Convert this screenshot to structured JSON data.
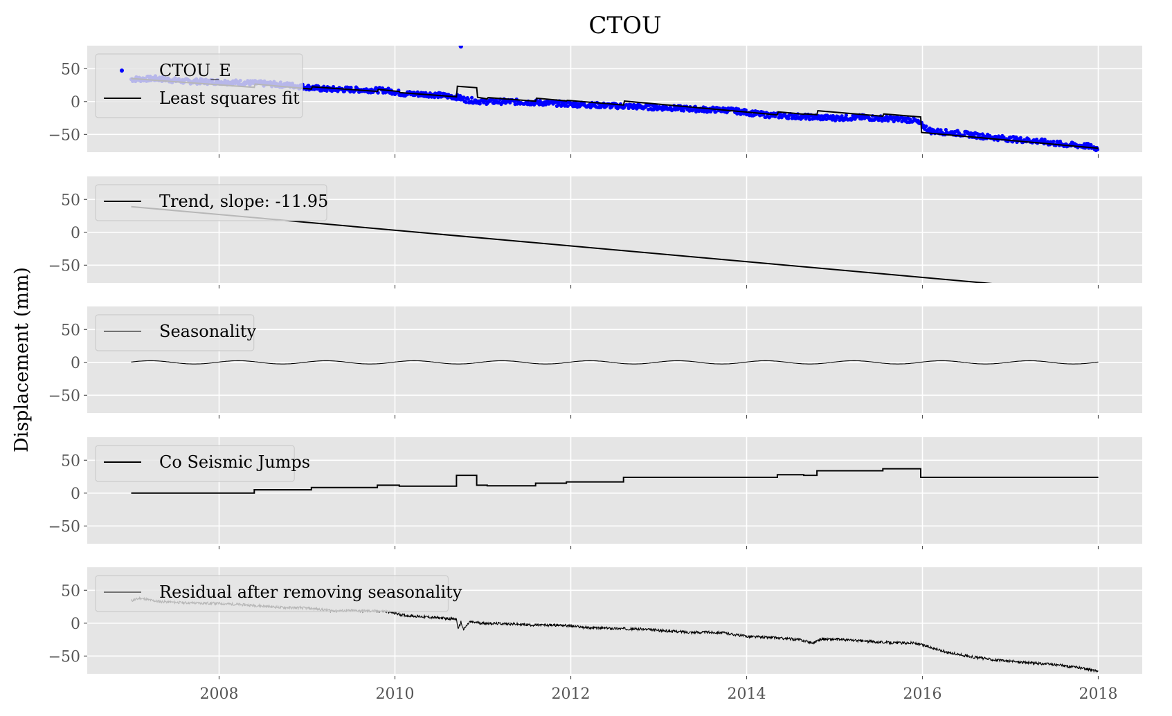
{
  "chart_data": {
    "type": "line",
    "title": "CTOU",
    "ylabel": "Displacement (mm)",
    "xlabel": "",
    "xlim": [
      2006.5,
      2018.5
    ],
    "ylim": [
      -77,
      85
    ],
    "x_ticks": [
      2008,
      2010,
      2012,
      2014,
      2016,
      2018
    ],
    "x_tick_labels": [
      "2008",
      "2010",
      "2012",
      "2014",
      "2016",
      "2018"
    ],
    "y_ticks": [
      50,
      0,
      -50
    ],
    "y_tick_labels": [
      "50",
      "0",
      "−50"
    ],
    "grid": true,
    "background_color": "#e5e5e5",
    "legend_position": "upper left",
    "panels": [
      {
        "legend": [
          {
            "label": "CTOU_E",
            "style": "point",
            "color": "#0000ff"
          },
          {
            "label": "Least squares fit",
            "style": "line",
            "color": "#000000"
          }
        ],
        "series": [
          {
            "name": "CTOU_E",
            "style": "scatter",
            "color": "#0000ff",
            "x": [
              2007.0,
              2007.3,
              2007.6,
              2008.0,
              2008.4,
              2008.8,
              2009.2,
              2009.6,
              2009.9,
              2010.1,
              2010.4,
              2010.7,
              2010.8,
              2011.0,
              2011.3,
              2011.7,
              2012.0,
              2012.4,
              2012.8,
              2013.2,
              2013.5,
              2013.8,
              2014.2,
              2014.5,
              2014.8,
              2015.0,
              2015.3,
              2015.6,
              2015.9,
              2016.1,
              2016.4,
              2016.7,
              2017.0,
              2017.3,
              2017.6,
              2017.9,
              2018.0
            ],
            "y": [
              34,
              35,
              31,
              30,
              28,
              25,
              19,
              18,
              17,
              12,
              11,
              7,
              3,
              0,
              0,
              -2,
              -4,
              -6,
              -8,
              -10,
              -12,
              -13,
              -20,
              -22,
              -24,
              -25,
              -24,
              -26,
              -28,
              -45,
              -48,
              -53,
              -57,
              -60,
              -65,
              -68,
              -72
            ]
          },
          {
            "name": "Least squares fit",
            "style": "line",
            "color": "#000000",
            "x": [
              2007.0,
              2008.4,
              2008.41,
              2009.05,
              2009.06,
              2009.8,
              2009.81,
              2010.05,
              2010.06,
              2010.7,
              2010.71,
              2010.93,
              2010.94,
              2011.05,
              2011.06,
              2011.6,
              2011.61,
              2011.95,
              2011.96,
              2012.6,
              2012.61,
              2014.35,
              2014.36,
              2014.65,
              2014.66,
              2014.8,
              2014.81,
              2015.55,
              2015.56,
              2015.98,
              2015.99,
              2018.0
            ],
            "y": [
              35,
              21.6,
              26.6,
              18.9,
              22.4,
              15.5,
              18.5,
              15.3,
              13.6,
              7.3,
              23.3,
              21.0,
              6.5,
              4.0,
              6.0,
              0.5,
              5.0,
              0.9,
              1.9,
              -5.3,
              0.7,
              -20.2,
              -15.7,
              -19.2,
              -18.7,
              -20.0,
              -14.0,
              -22.3,
              -18.8,
              -23.5,
              -47.0,
              -71.0
            ]
          }
        ]
      },
      {
        "legend": [
          {
            "label": "Trend, slope: -11.95",
            "style": "line",
            "color": "#000000"
          }
        ],
        "series": [
          {
            "name": "Trend, slope: -11.95",
            "style": "line",
            "color": "#000000",
            "x": [
              2007.0,
              2018.0
            ],
            "y": [
              39,
              -92.5
            ]
          }
        ]
      },
      {
        "legend": [
          {
            "label": "Seasonality",
            "style": "line",
            "color": "#000000"
          }
        ],
        "series": [
          {
            "name": "Seasonality",
            "style": "line",
            "color": "#000000",
            "function": "sine",
            "x_range": [
              2007.0,
              2018.0
            ],
            "amplitude": 2.5,
            "period_years": 1.0,
            "phase": 0.2
          }
        ]
      },
      {
        "legend": [
          {
            "label": "Co Seismic Jumps",
            "style": "line",
            "color": "#000000"
          }
        ],
        "series": [
          {
            "name": "Co Seismic Jumps",
            "style": "step",
            "color": "#000000",
            "x": [
              2007.0,
              2008.4,
              2009.05,
              2009.8,
              2010.05,
              2010.7,
              2010.93,
              2011.05,
              2011.6,
              2011.95,
              2012.6,
              2014.35,
              2014.65,
              2014.8,
              2015.55,
              2015.98,
              2018.0
            ],
            "y": [
              0,
              5,
              8.5,
              12,
              10.5,
              27,
              12,
              11,
              15,
              17,
              24,
              28,
              27,
              34,
              37,
              24,
              24
            ]
          }
        ]
      },
      {
        "legend": [
          {
            "label": "Residual after removing seasonality",
            "style": "line",
            "color": "#000000"
          }
        ],
        "series": [
          {
            "name": "Residual after removing seasonality",
            "style": "line",
            "color": "#000000",
            "x": [
              2007.0,
              2007.1,
              2007.3,
              2007.6,
              2008.0,
              2008.4,
              2008.7,
              2009.0,
              2009.3,
              2009.6,
              2009.9,
              2010.1,
              2010.3,
              2010.5,
              2010.7,
              2010.72,
              2010.75,
              2010.78,
              2010.85,
              2011.0,
              2011.3,
              2011.6,
              2011.9,
              2012.2,
              2012.5,
              2012.8,
              2013.1,
              2013.4,
              2013.7,
              2014.0,
              2014.3,
              2014.6,
              2014.75,
              2014.85,
              2015.1,
              2015.4,
              2015.7,
              2015.9,
              2016.05,
              2016.3,
              2016.6,
              2016.9,
              2017.2,
              2017.5,
              2017.8,
              2018.0
            ],
            "y": [
              34,
              38,
              33,
              31,
              30,
              27,
              24,
              23,
              19,
              19,
              18,
              12,
              10,
              8,
              6,
              -10,
              2,
              -10,
              2,
              0,
              -1,
              -3,
              -3,
              -7,
              -8,
              -9,
              -12,
              -14,
              -14,
              -20,
              -22,
              -25,
              -30,
              -24,
              -25,
              -28,
              -30,
              -30,
              -35,
              -45,
              -52,
              -57,
              -60,
              -63,
              -68,
              -73
            ]
          }
        ]
      }
    ]
  }
}
